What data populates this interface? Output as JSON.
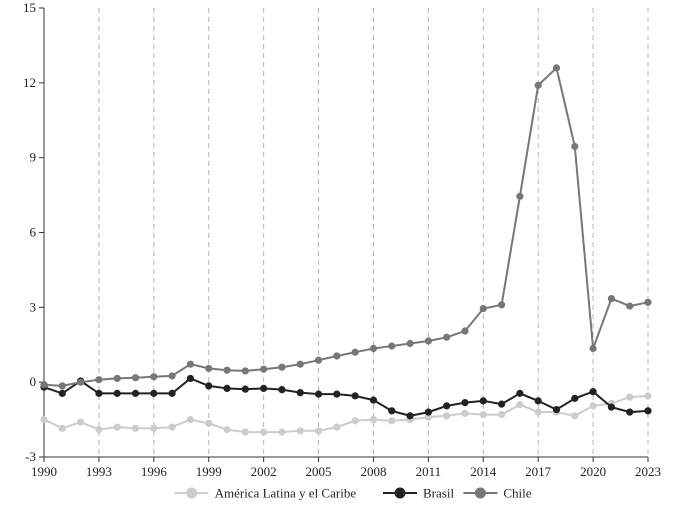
{
  "chart_data": {
    "type": "line",
    "xlim": [
      1990,
      2023
    ],
    "ylim": [
      -3,
      15
    ],
    "x_ticks": [
      1990,
      1993,
      1996,
      1999,
      2002,
      2005,
      2008,
      2011,
      2014,
      2017,
      2020,
      2023
    ],
    "y_ticks": [
      -3,
      0,
      3,
      6,
      9,
      12,
      15
    ],
    "grid": "vertical-dashed",
    "legend_position": "bottom",
    "x": [
      1990,
      1991,
      1992,
      1993,
      1994,
      1995,
      1996,
      1997,
      1998,
      1999,
      2000,
      2001,
      2002,
      2003,
      2004,
      2005,
      2006,
      2007,
      2008,
      2009,
      2010,
      2011,
      2012,
      2013,
      2014,
      2015,
      2016,
      2017,
      2018,
      2019,
      2020,
      2021,
      2022,
      2023
    ],
    "series": [
      {
        "name": "América Latina y el Caribe",
        "color": "#cccccc",
        "values": [
          -1.5,
          -1.85,
          -1.6,
          -1.9,
          -1.8,
          -1.85,
          -1.85,
          -1.8,
          -1.5,
          -1.65,
          -1.9,
          -2.0,
          -2.0,
          -2.0,
          -1.95,
          -1.95,
          -1.8,
          -1.55,
          -1.5,
          -1.55,
          -1.5,
          -1.4,
          -1.35,
          -1.25,
          -1.3,
          -1.3,
          -0.9,
          -1.2,
          -1.2,
          -1.35,
          -0.95,
          -0.85,
          -0.6,
          -0.55
        ]
      },
      {
        "name": "Brasil",
        "color": "#222222",
        "values": [
          -0.2,
          -0.45,
          0.05,
          -0.45,
          -0.45,
          -0.45,
          -0.45,
          -0.45,
          0.15,
          -0.15,
          -0.25,
          -0.28,
          -0.25,
          -0.3,
          -0.42,
          -0.48,
          -0.48,
          -0.55,
          -0.72,
          -1.15,
          -1.35,
          -1.2,
          -0.95,
          -0.82,
          -0.75,
          -0.88,
          -0.45,
          -0.75,
          -1.1,
          -0.65,
          -0.38,
          -1.0,
          -1.2,
          -1.15
        ]
      },
      {
        "name": "Chile",
        "color": "#777777",
        "values": [
          -0.1,
          -0.15,
          0.0,
          0.1,
          0.15,
          0.18,
          0.22,
          0.25,
          0.72,
          0.55,
          0.48,
          0.45,
          0.52,
          0.6,
          0.72,
          0.88,
          1.05,
          1.2,
          1.35,
          1.45,
          1.55,
          1.65,
          1.8,
          2.05,
          2.95,
          3.1,
          7.45,
          11.9,
          12.6,
          9.45,
          1.35,
          3.35,
          3.05,
          3.2
        ]
      }
    ]
  }
}
